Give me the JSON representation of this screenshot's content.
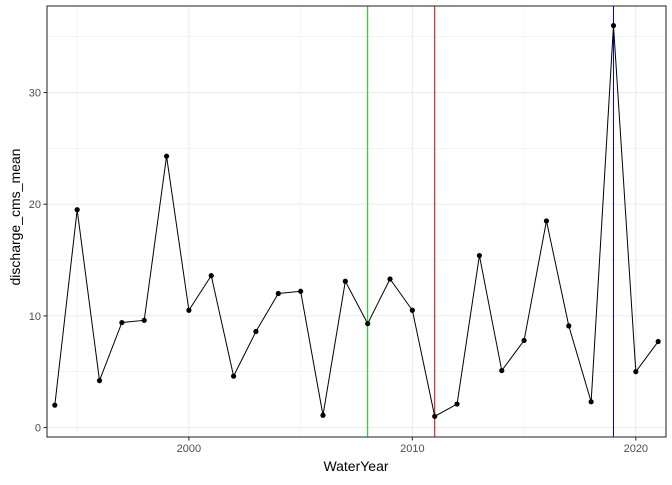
{
  "chart_data": {
    "type": "line",
    "xlabel": "WaterYear",
    "ylabel": "discharge_cms_mean",
    "xlim": [
      1993.65,
      2021.35
    ],
    "ylim": [
      -0.85,
      37.75
    ],
    "x_ticks": [
      2000,
      2010,
      2020
    ],
    "x_minor_ticks": [
      1995,
      2005,
      2015
    ],
    "y_ticks": [
      0,
      10,
      20,
      30
    ],
    "y_minor_ticks": [
      5,
      15,
      25,
      35
    ],
    "grid": true,
    "series": [
      {
        "color": "#000000",
        "markers": true,
        "x": [
          1994,
          1995,
          1996,
          1997,
          1998,
          1999,
          2000,
          2001,
          2002,
          2003,
          2004,
          2005,
          2006,
          2007,
          2008,
          2009,
          2010,
          2011,
          2012,
          2013,
          2014,
          2015,
          2016,
          2017,
          2018,
          2019,
          2020,
          2021
        ],
        "y": [
          2.0,
          19.5,
          4.2,
          9.4,
          9.6,
          24.3,
          10.5,
          13.6,
          4.6,
          8.6,
          12.0,
          12.2,
          1.1,
          13.1,
          9.3,
          13.3,
          10.5,
          1.0,
          2.1,
          15.4,
          5.1,
          7.8,
          18.5,
          9.1,
          2.3,
          36.0,
          5.0,
          7.7
        ]
      }
    ],
    "vlines": [
      {
        "x": 2008,
        "color": "#00cc00"
      },
      {
        "x": 2011,
        "color": "#cc0000"
      },
      {
        "x": 2019,
        "color": "#0000cc"
      }
    ]
  }
}
